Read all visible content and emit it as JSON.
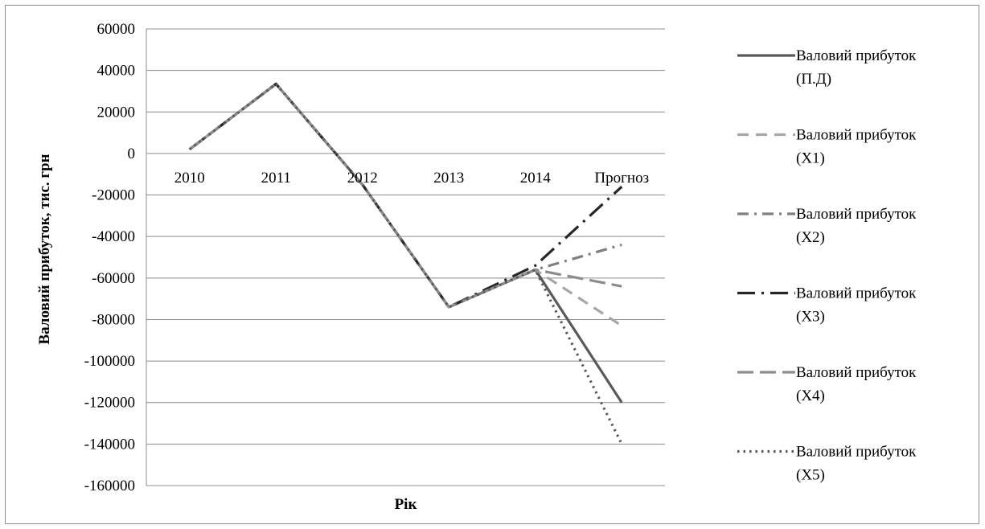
{
  "chart_data": {
    "type": "line",
    "xlabel": "Рік",
    "ylabel": "Валовий прибуток, тис. грн",
    "ylim": [
      -160000,
      60000
    ],
    "yticks": [
      60000,
      40000,
      20000,
      0,
      -20000,
      -40000,
      -60000,
      -80000,
      -100000,
      -120000,
      -140000,
      -160000
    ],
    "categories": [
      "2010",
      "2011",
      "2012",
      "2013",
      "2014",
      "Прогноз"
    ],
    "grid": "horizontal",
    "legend_position": "right",
    "series": [
      {
        "name_lines": [
          "Валовий прибуток",
          "(П.Д)"
        ],
        "values": [
          2000,
          33500,
          -15000,
          -74000,
          -56000,
          -120000
        ],
        "color": "#595959",
        "dash": "solid"
      },
      {
        "name_lines": [
          "Валовий прибуток",
          "(X1)"
        ],
        "values": [
          2000,
          33500,
          -15000,
          -74000,
          -56000,
          -83000
        ],
        "color": "#a6a6a6",
        "dash": "dash"
      },
      {
        "name_lines": [
          "Валовий прибуток",
          "(X2)"
        ],
        "values": [
          2000,
          33500,
          -15000,
          -74000,
          -56000,
          -44000
        ],
        "color": "#7f7f7f",
        "dash": "dashdot"
      },
      {
        "name_lines": [
          "Валовий прибуток",
          "(X3)"
        ],
        "values": [
          2000,
          33500,
          -15000,
          -74000,
          -54000,
          -16000
        ],
        "color": "#262626",
        "dash": "longdashdot"
      },
      {
        "name_lines": [
          "Валовий прибуток",
          "(X4)"
        ],
        "values": [
          2000,
          33500,
          -15000,
          -74000,
          -56000,
          -64000
        ],
        "color": "#8c8c8c",
        "dash": "longdash"
      },
      {
        "name_lines": [
          "Валовий прибуток",
          "(X5)"
        ],
        "values": [
          2000,
          33500,
          -15000,
          -74000,
          -56000,
          -140000
        ],
        "color": "#595959",
        "dash": "dot"
      }
    ]
  }
}
